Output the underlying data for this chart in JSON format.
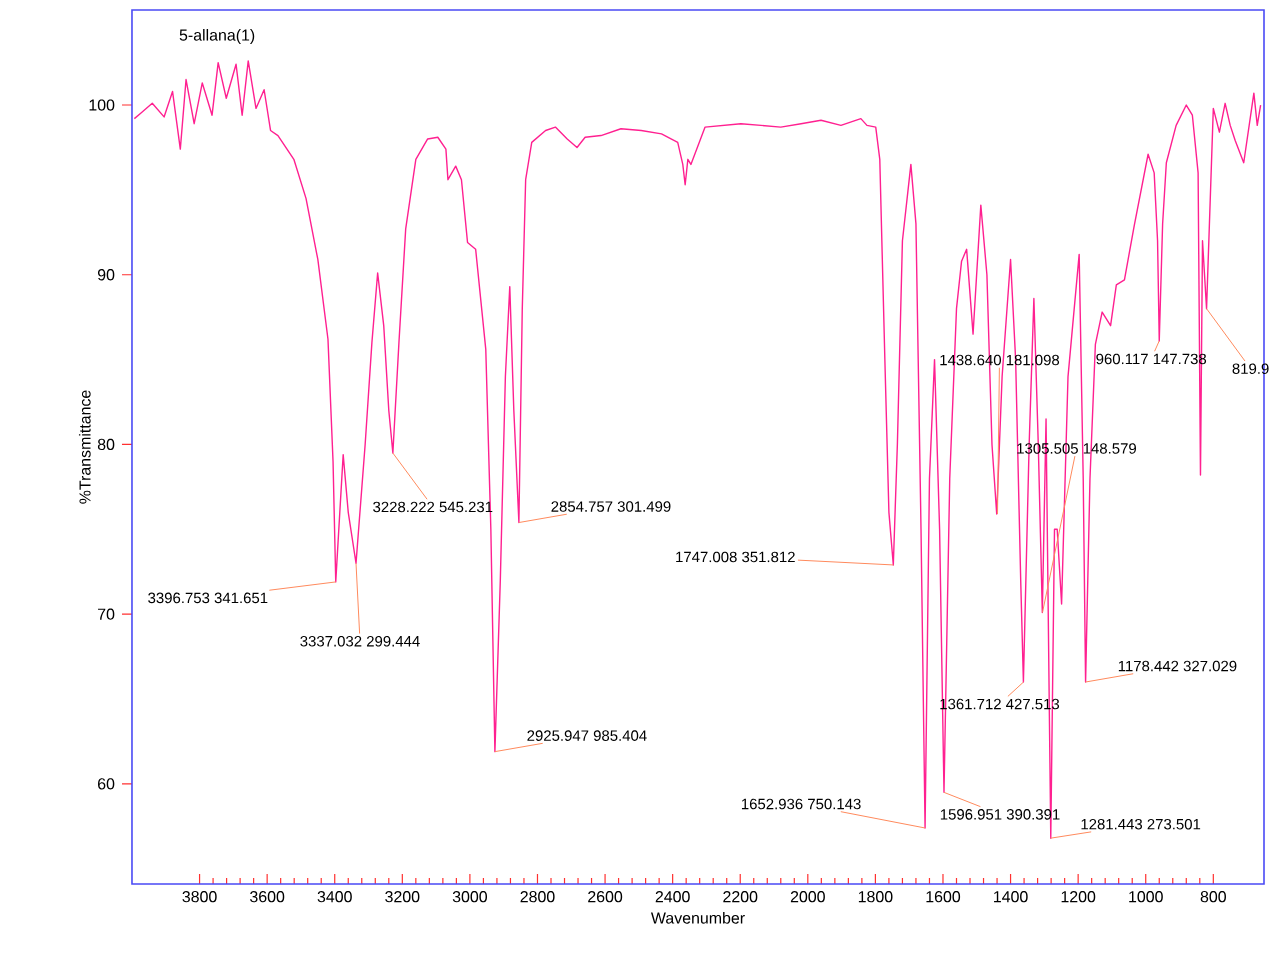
{
  "chart_data": {
    "type": "line",
    "title": "5-allana(1)",
    "xlabel": "Wavenumber",
    "ylabel": "%Transmittance",
    "x": [
      3993,
      3975,
      3940,
      3905,
      3880,
      3857,
      3840,
      3816,
      3792,
      3763,
      3745,
      3721,
      3692,
      3674,
      3656,
      3633,
      3609,
      3590,
      3568,
      3521,
      3485,
      3450,
      3420,
      3405,
      3397,
      3385,
      3375,
      3360,
      3337,
      3310,
      3290,
      3273,
      3255,
      3240,
      3228,
      3210,
      3190,
      3160,
      3125,
      3095,
      3071,
      3065,
      3042,
      3025,
      3007,
      2983,
      2953,
      2938,
      2926,
      2910,
      2895,
      2882,
      2870,
      2855,
      2845,
      2835,
      2817,
      2776,
      2747,
      2712,
      2683,
      2659,
      2612,
      2553,
      2493,
      2433,
      2385,
      2370,
      2363,
      2355,
      2346,
      2304,
      2198,
      2080,
      2020,
      1961,
      1902,
      1843,
      1825,
      1799,
      1787,
      1772,
      1760,
      1747,
      1735,
      1720,
      1695,
      1680,
      1665,
      1653,
      1640,
      1625,
      1610,
      1597,
      1580,
      1560,
      1545,
      1530,
      1511,
      1488,
      1470,
      1455,
      1441,
      1425,
      1400,
      1385,
      1370,
      1362,
      1345,
      1331,
      1318,
      1306,
      1295,
      1281,
      1270,
      1262,
      1249,
      1230,
      1197,
      1185,
      1178,
      1165,
      1149,
      1129,
      1104,
      1087,
      1063,
      1034,
      993,
      975,
      965,
      960,
      950,
      939,
      910,
      880,
      862,
      845,
      838,
      832,
      820,
      800,
      782,
      765,
      750,
      735,
      710,
      680,
      670,
      660
    ],
    "series": [
      {
        "color": "#ff2090",
        "values": [
          99.2,
          99.5,
          100.1,
          99.3,
          100.8,
          97.4,
          101.5,
          98.9,
          101.3,
          99.4,
          102.5,
          100.4,
          102.4,
          99.4,
          102.6,
          99.8,
          100.9,
          98.5,
          98.2,
          96.8,
          94.5,
          90.9,
          86.2,
          79,
          71.9,
          76,
          79.4,
          76,
          73.0,
          80,
          86,
          90.1,
          87,
          82,
          79.5,
          86,
          92.7,
          96.8,
          98.0,
          98.1,
          97.4,
          95.6,
          96.4,
          95.6,
          91.9,
          91.5,
          85.6,
          75,
          61.9,
          72,
          84,
          89.3,
          82,
          75.4,
          88,
          95.6,
          97.8,
          98.5,
          98.7,
          98.0,
          97.5,
          98.1,
          98.2,
          98.6,
          98.5,
          98.3,
          97.8,
          96.5,
          95.3,
          96.8,
          96.5,
          98.7,
          98.9,
          98.7,
          98.9,
          99.1,
          98.8,
          99.2,
          98.8,
          98.7,
          96.8,
          85,
          76,
          72.9,
          80,
          92,
          96.5,
          93,
          75,
          57.4,
          78,
          85,
          75,
          59.5,
          78,
          88,
          90.8,
          91.5,
          86.5,
          94.1,
          90,
          80,
          75.9,
          84,
          90.9,
          85,
          72,
          66.0,
          80,
          88.6,
          80,
          70.1,
          81.5,
          56.8,
          75,
          75,
          70.6,
          84,
          91.2,
          78,
          66.0,
          78,
          85.9,
          87.8,
          87.0,
          89.4,
          89.7,
          92.9,
          97.1,
          96.0,
          92,
          86.1,
          93,
          96.6,
          98.8,
          100.0,
          99.4,
          96,
          78.2,
          92,
          88.0,
          99.8,
          98.4,
          100.1,
          98.8,
          97.9,
          96.6,
          100.7,
          98.8,
          100.0
        ]
      }
    ],
    "xlim": [
      4000,
      650
    ],
    "ylim": [
      54.1,
      105.6
    ],
    "xticks": [
      3800,
      3600,
      3400,
      3200,
      3000,
      2800,
      2600,
      2400,
      2200,
      2000,
      1800,
      1600,
      1400,
      1200,
      1000,
      800
    ],
    "yticks": [
      60,
      70,
      80,
      90,
      100
    ],
    "annotations": [
      {
        "text": "3396.753  341.651",
        "x": 3396.753,
        "y": 71.9
      },
      {
        "text": "3337.032  299.444",
        "x": 3337.032,
        "y": 73.0
      },
      {
        "text": "3228.222  545.231",
        "x": 3228.222,
        "y": 79.5
      },
      {
        "text": "2925.947  985.404",
        "x": 2925.947,
        "y": 61.9
      },
      {
        "text": "2854.757  301.499",
        "x": 2854.757,
        "y": 75.4
      },
      {
        "text": "1747.008  351.812",
        "x": 1747.008,
        "y": 72.9
      },
      {
        "text": "1652.936  750.143",
        "x": 1652.936,
        "y": 57.4
      },
      {
        "text": "1596.951  390.391",
        "x": 1596.951,
        "y": 59.5
      },
      {
        "text": "1438.640  181.098",
        "x": 1438.64,
        "y": 75.9
      },
      {
        "text": "1305.505  148.579",
        "x": 1305.505,
        "y": 70.1
      },
      {
        "text": "1361.712  427.513",
        "x": 1361.712,
        "y": 66.0
      },
      {
        "text": "1281.443  273.501",
        "x": 1281.443,
        "y": 56.8
      },
      {
        "text": "1178.442  327.029",
        "x": 1178.442,
        "y": 66.0
      },
      {
        "text": "960.117  147.738",
        "x": 960.117,
        "y": 86.1
      },
      {
        "text": "819.9",
        "x": 819.9,
        "y": 88.0
      }
    ]
  }
}
